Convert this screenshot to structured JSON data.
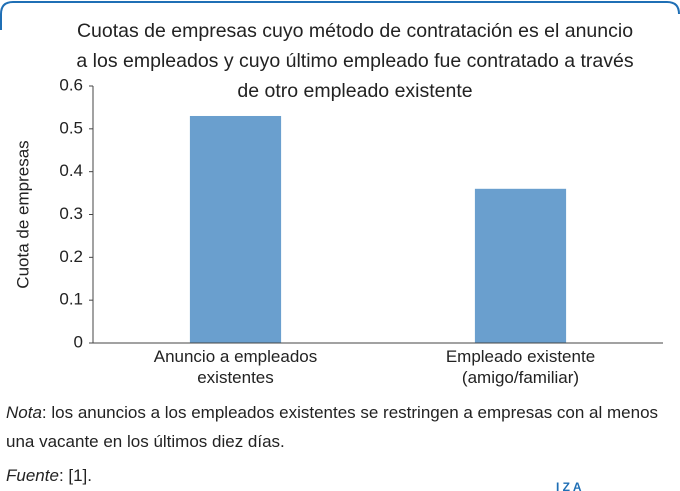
{
  "chart_data": {
    "type": "bar",
    "title": "Cuotas de empresas cuyo método de contratación es el anuncio a los empleados y cuyo último empleado fue contratado a través de otro empleado existente",
    "y_label": "Cuota de empresas",
    "categories": [
      "Anuncio a empleados existentes",
      "Empleado existente (amigo/familiar)"
    ],
    "values": [
      0.53,
      0.36
    ],
    "color": "#6a9fce",
    "ylim": [
      0,
      0.6
    ],
    "yticks": [
      0,
      0.1,
      0.2,
      0.3,
      0.4,
      0.5,
      0.6
    ],
    "grid": false
  },
  "note": {
    "label": "Nota",
    "text": ": los anuncios a los empleados existentes se restringen a empresas con al menos una vacante en los últimos diez días."
  },
  "source": {
    "label": "Fuente",
    "text": ": [1]."
  },
  "logo": "I Z A"
}
